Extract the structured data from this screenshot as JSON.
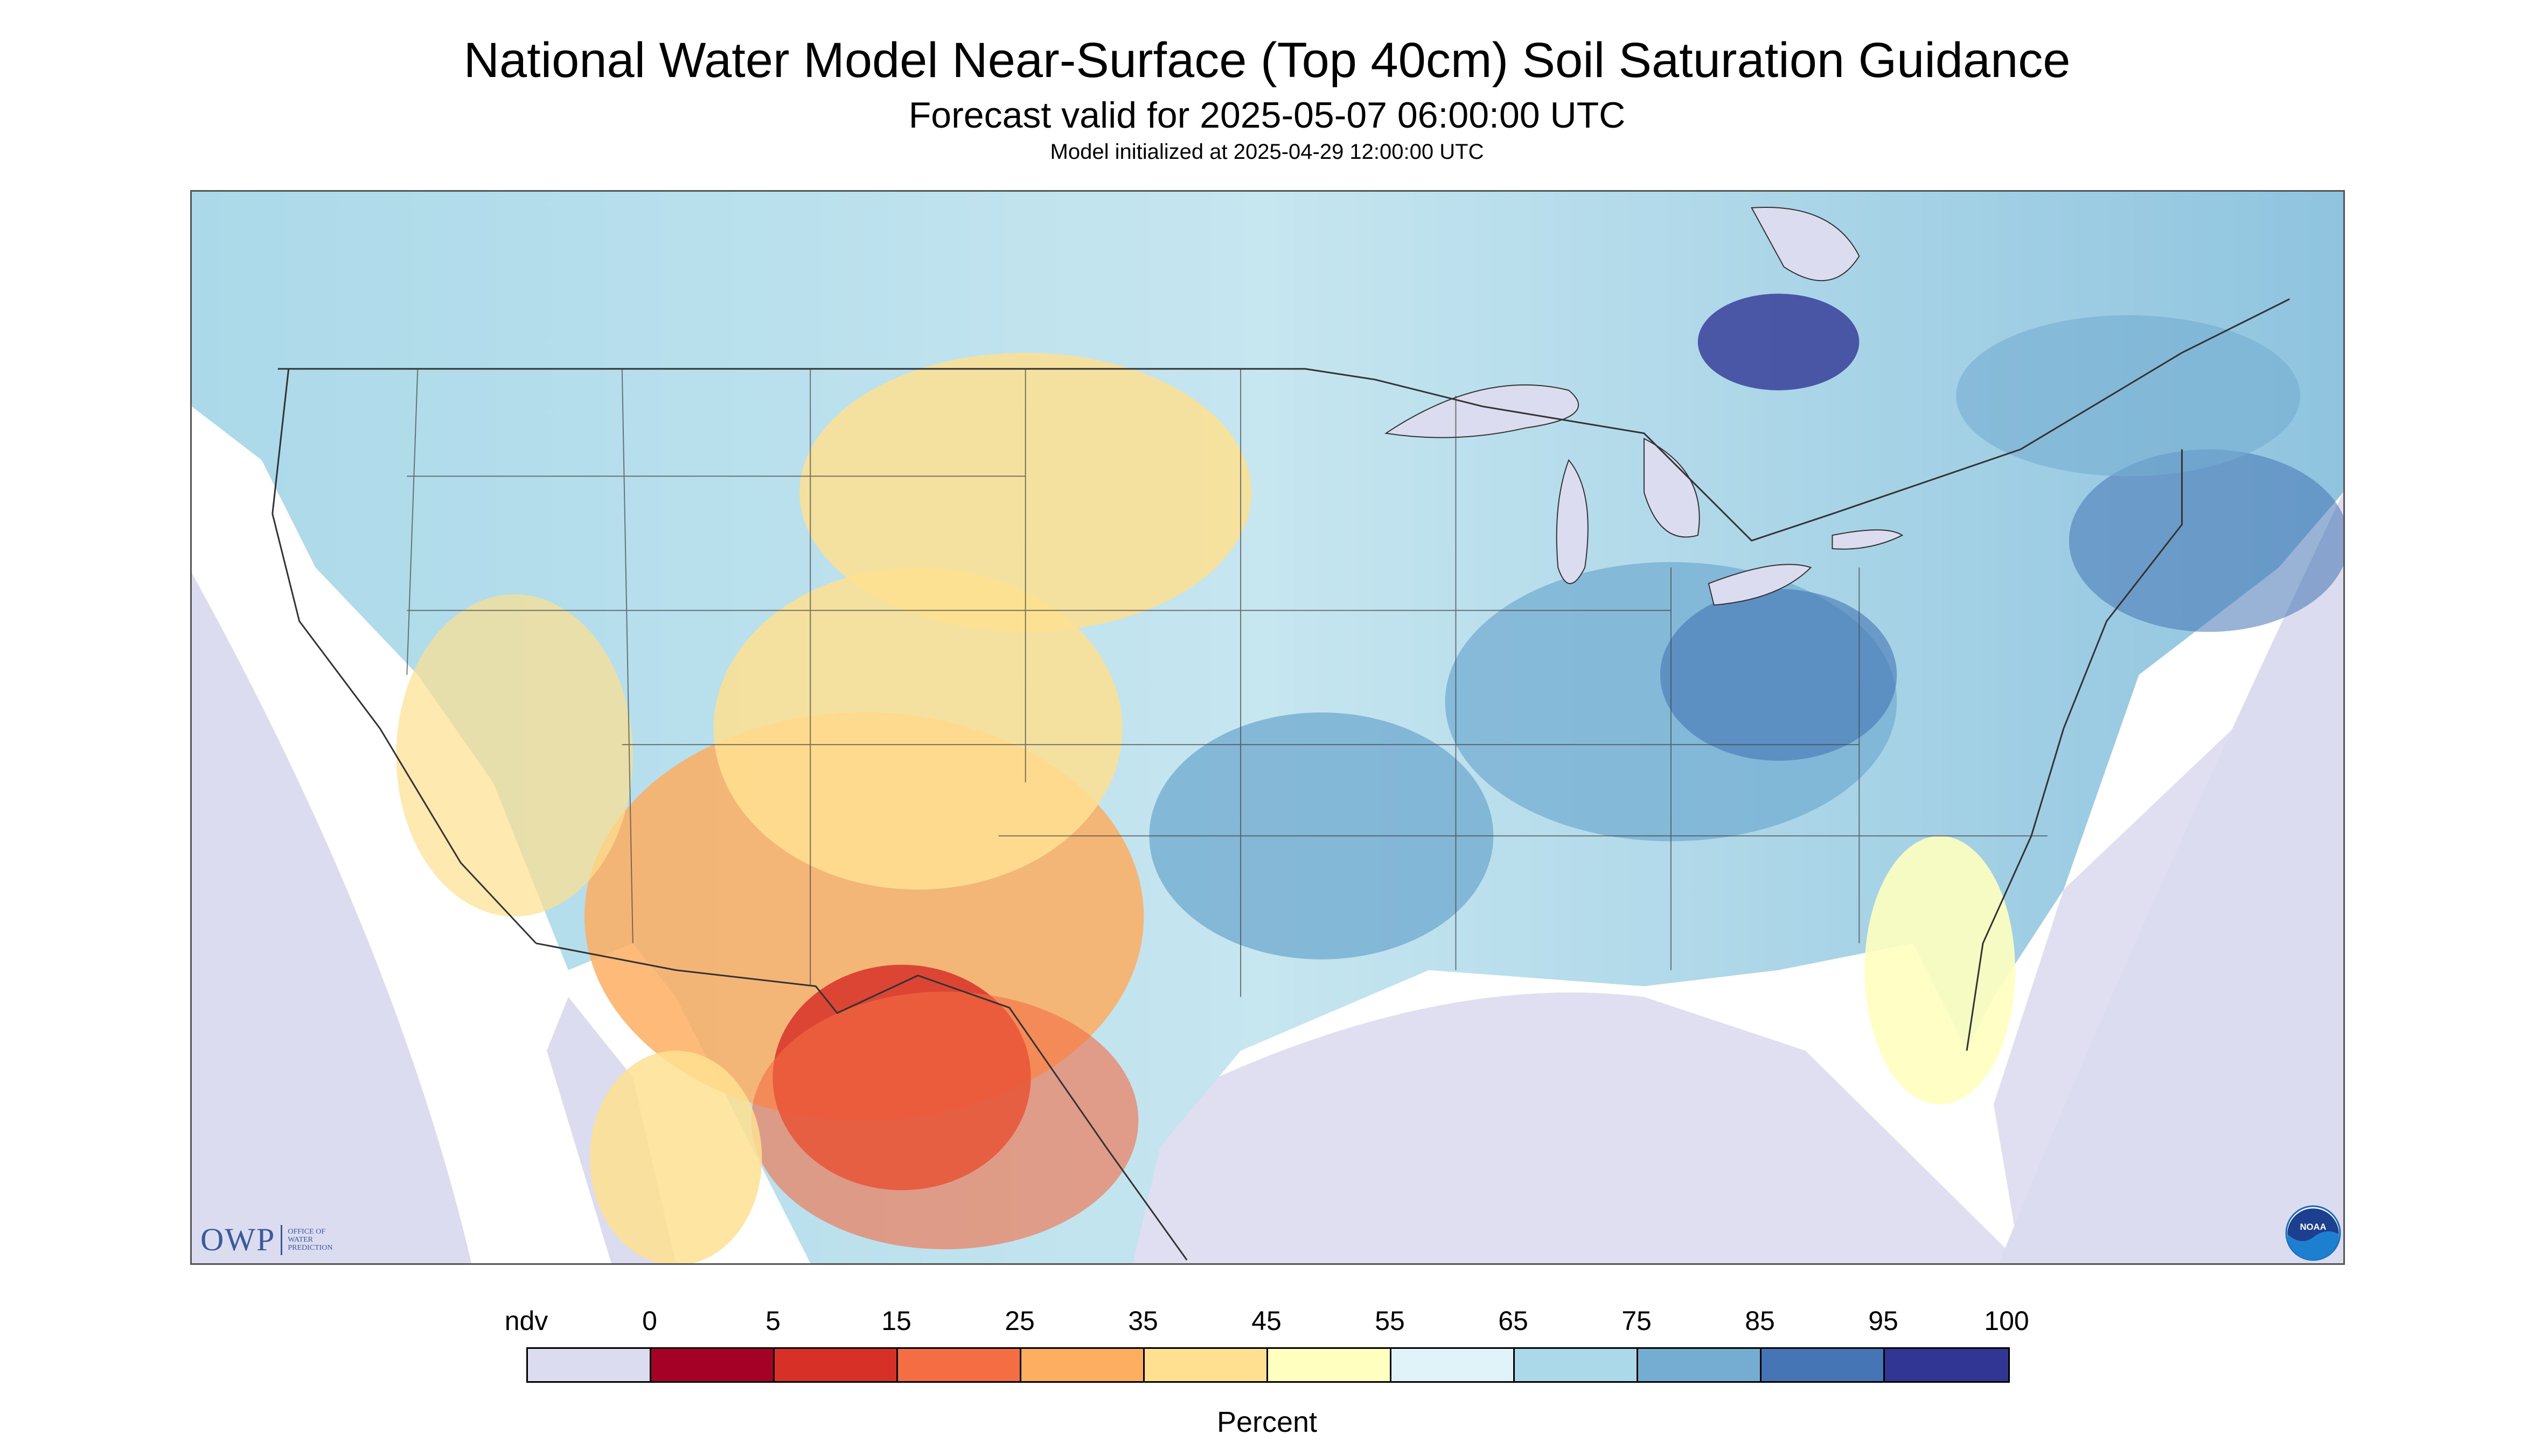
{
  "header": {
    "title": "National Water Model Near-Surface (Top 40cm) Soil Saturation Guidance",
    "subtitle": "Forecast valid for 2025-05-07 06:00:00 UTC",
    "init": "Model initialized at 2025-04-29 12:00:00 UTC"
  },
  "map": {
    "region": "Contiguous United States",
    "colors": {
      "land_bg": "#a9d3e6",
      "ndv": "#dcdcf0",
      "boundary": "#333333"
    }
  },
  "logos": {
    "owp_mark": "OWP",
    "owp_lines": [
      "Office of",
      "Water",
      "Prediction"
    ],
    "noaa_label": "NOAA"
  },
  "legend": {
    "ticks": [
      "ndv",
      "0",
      "5",
      "15",
      "25",
      "35",
      "45",
      "55",
      "65",
      "75",
      "85",
      "95",
      "100"
    ],
    "colors": [
      "#dcdcf0",
      "#a50026",
      "#d73027",
      "#f46d43",
      "#fdae61",
      "#fee090",
      "#ffffbf",
      "#e0f3f8",
      "#abd9e9",
      "#74add1",
      "#4575b4",
      "#313695"
    ],
    "units": "Percent"
  }
}
